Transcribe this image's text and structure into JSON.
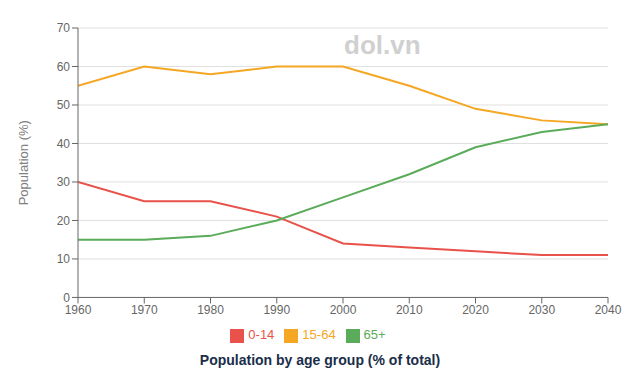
{
  "chart_data": {
    "type": "line",
    "x": [
      1960,
      1970,
      1980,
      1990,
      2000,
      2010,
      2020,
      2030,
      2040
    ],
    "xlim": [
      1960,
      2040
    ],
    "xticks": [
      1960,
      1970,
      1980,
      1990,
      2000,
      2010,
      2020,
      2030,
      2040
    ],
    "ylim": [
      0,
      70
    ],
    "yticks": [
      0,
      10,
      20,
      30,
      40,
      50,
      60,
      70
    ],
    "ylabel": "Population (%)",
    "xlabel": "Population by age group (% of total)",
    "series": [
      {
        "name": "0-14",
        "color": "#e8524a",
        "values": [
          30,
          25,
          25,
          21,
          14,
          13,
          12,
          11,
          11
        ]
      },
      {
        "name": "15-64",
        "color": "#f5a623",
        "values": [
          55,
          60,
          58,
          60,
          60,
          55,
          49,
          46,
          45
        ]
      },
      {
        "name": "65+",
        "color": "#5aab5a",
        "values": [
          15,
          15,
          16,
          20,
          26,
          32,
          39,
          43,
          45
        ]
      }
    ],
    "grid": true,
    "legend": "bottom",
    "annotations": [
      "dol.vn"
    ]
  }
}
